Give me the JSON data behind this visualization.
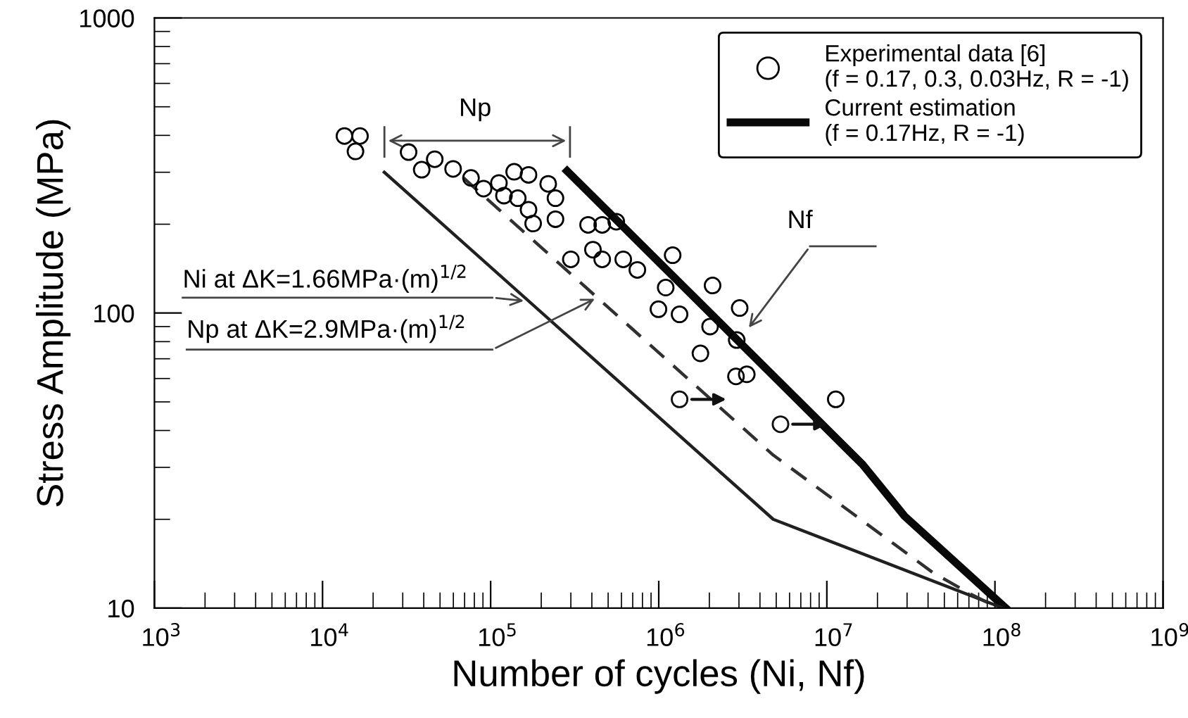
{
  "chart_data": {
    "type": "scatter",
    "xlabel": "Number of cycles (Ni, Nf)",
    "ylabel": "Stress Amplitude (MPa)",
    "log": "xy",
    "xlim": [
      1000,
      1000000000
    ],
    "ylim": [
      10,
      1000
    ],
    "xticks": [
      {
        "value": 1000,
        "label": "10$^{3}$"
      },
      {
        "value": 10000,
        "label": "10$^{4}$"
      },
      {
        "value": 100000,
        "label": "10$^{5}$"
      },
      {
        "value": 1000000,
        "label": "10$^{6}$"
      },
      {
        "value": 10000000,
        "label": "10$^{7}$"
      },
      {
        "value": 100000000,
        "label": "10$^{8}$"
      },
      {
        "value": 1000000000,
        "label": "10$^{9}$"
      }
    ],
    "yticks": [
      10,
      100,
      1000
    ],
    "grid": false,
    "legend": "top right",
    "series": [
      {
        "name": "Experimental data [6]\n(f = 0.17, 0.3, 0.03Hz, R = -1)",
        "type": "scatter",
        "marker": "circle",
        "color": "#000000",
        "x": [
          13500,
          16700,
          15700,
          32500,
          38900,
          46500,
          59800,
          76400,
          90800,
          112000,
          138000,
          168000,
          120000,
          145000,
          168000,
          179000,
          220000,
          243000,
          243000,
          300000,
          380000,
          461000,
          559000,
          406000,
          461000,
          615000,
          746000,
          1100000,
          1210000,
          2090000,
          996000,
          1330000,
          2020000,
          1770000,
          3030000,
          2910000,
          2880000,
          3340000,
          11300000
        ],
        "values": [
          398,
          398,
          353,
          351,
          306,
          332,
          308,
          287,
          264,
          276,
          301,
          294,
          250,
          245,
          224,
          201,
          274,
          245,
          208,
          152,
          199,
          199,
          204,
          164,
          152,
          152,
          140,
          122,
          157,
          124,
          103,
          99,
          90,
          73,
          104,
          81,
          61,
          62,
          51
        ]
      },
      {
        "type": "scatter",
        "marker": "circle",
        "color": "#101010",
        "x": [
          1330000,
          5300000
        ],
        "values": [
          51,
          42
        ]
      },
      {
        "name": "Current estimation\n(f = 0.17Hz, R = -1)",
        "type": "line",
        "line_style": "solid",
        "color": "#080808",
        "x": [
          285000,
          16300000,
          29000000,
          116000000
        ],
        "values": [
          303,
          30.7,
          20.5,
          10
        ]
      },
      {
        "type": "line",
        "line_style": "solid",
        "color": "#202020",
        "x": [
          23300,
          4800000,
          112000000
        ],
        "values": [
          300,
          20,
          10
        ]
      },
      {
        "type": "line",
        "line_style": "dashed",
        "color": "#303030",
        "x": [
          69000,
          4800000,
          42700000,
          71000000,
          105000000
        ],
        "values": [
          287,
          33,
          13.2,
          11.2,
          10
        ]
      }
    ],
    "annotations": [
      "Np",
      "Nf",
      "Ni at ΔK=1.66MPa·(m)$^{1/2}$",
      "Np at ΔK=2.9MPa·(m)$^{1/2}$"
    ]
  }
}
